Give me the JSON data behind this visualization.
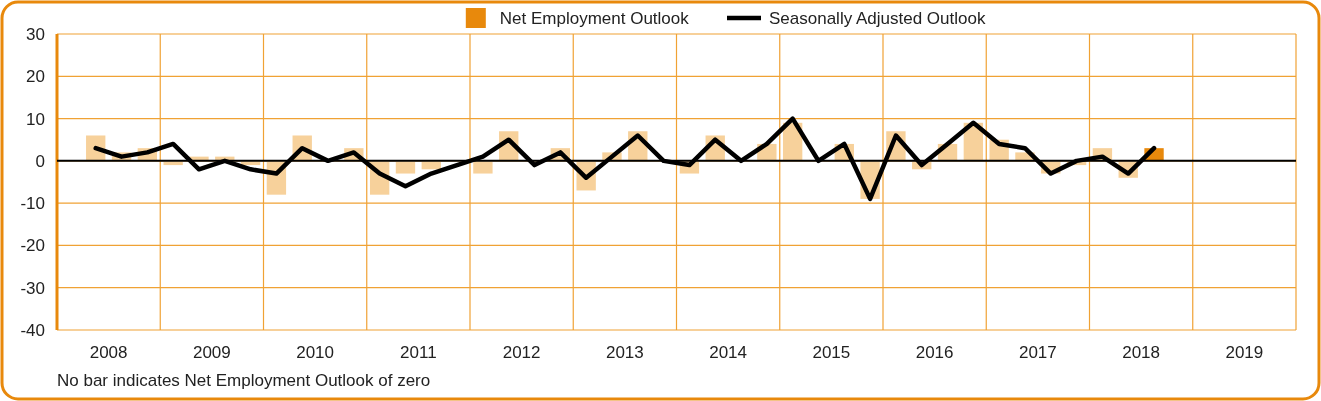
{
  "chart_data": {
    "type": "bar",
    "xlim": [
      2008,
      2020
    ],
    "xticks": [
      {
        "value": 2008,
        "label": null
      },
      {
        "value": 2008.5,
        "label": "2008"
      },
      {
        "value": 2009,
        "label": null
      },
      {
        "value": 2009.5,
        "label": "2009"
      },
      {
        "value": 2010,
        "label": null
      },
      {
        "value": 2010.5,
        "label": "2010"
      },
      {
        "value": 2011,
        "label": null
      },
      {
        "value": 2011.5,
        "label": "2011"
      },
      {
        "value": 2012,
        "label": null
      },
      {
        "value": 2012.5,
        "label": "2012"
      },
      {
        "value": 2013,
        "label": null
      },
      {
        "value": 2013.5,
        "label": "2013"
      },
      {
        "value": 2014,
        "label": null
      },
      {
        "value": 2014.5,
        "label": "2014"
      },
      {
        "value": 2015,
        "label": null
      },
      {
        "value": 2015.5,
        "label": "2015"
      },
      {
        "value": 2016,
        "label": null
      },
      {
        "value": 2016.5,
        "label": "2016"
      },
      {
        "value": 2017,
        "label": null
      },
      {
        "value": 2017.5,
        "label": "2017"
      },
      {
        "value": 2018,
        "label": null
      },
      {
        "value": 2018.5,
        "label": "2018"
      },
      {
        "value": 2019,
        "label": null
      },
      {
        "value": 2019.5,
        "label": "2019"
      },
      {
        "value": 2020,
        "label": null
      }
    ],
    "ylim": [
      -40,
      30
    ],
    "yticks": [
      -40,
      -30,
      -20,
      -10,
      0,
      10,
      20,
      30
    ],
    "grid": true,
    "legend": "top",
    "ref_lines": [
      {
        "axis": "y",
        "value": 0,
        "color": "#000000"
      }
    ],
    "annotations": [
      "No bar indicates Net Employment Outlook of zero"
    ],
    "series": [
      {
        "name": "Net Employment Outlook",
        "color": "#e8890c",
        "x": [
          2008.375,
          2008.625,
          2008.875,
          2009.125,
          2009.375,
          2009.625,
          2009.875,
          2010.125,
          2010.375,
          2010.625,
          2010.875,
          2011.125,
          2011.375,
          2011.625,
          2011.875,
          2012.125,
          2012.375,
          2012.625,
          2012.875,
          2013.125,
          2013.375,
          2013.625,
          2013.875,
          2014.125,
          2014.375,
          2014.625,
          2014.875,
          2015.125,
          2015.375,
          2015.625,
          2015.875,
          2016.125,
          2016.375,
          2016.625,
          2016.875,
          2017.125,
          2017.375,
          2017.625,
          2017.875,
          2018.125,
          2018.375,
          2018.625
        ],
        "values": [
          6,
          2,
          3,
          -1,
          1,
          1,
          -1,
          -8,
          6,
          0,
          3,
          -8,
          -3,
          -2,
          0,
          -3,
          7,
          0,
          3,
          -7,
          2,
          7,
          0,
          -3,
          6,
          0,
          4,
          9,
          0,
          4,
          -9,
          7,
          -2,
          4,
          9,
          5,
          2,
          -3,
          -1,
          3,
          -4,
          3
        ],
        "colors": [
          "#f7d19b",
          "#f7d19b",
          "#f7d19b",
          "#f7d19b",
          "#f7d19b",
          "#f7d19b",
          "#f7d19b",
          "#f7d19b",
          "#f7d19b",
          "#f7d19b",
          "#f7d19b",
          "#f7d19b",
          "#f7d19b",
          "#f7d19b",
          "#f7d19b",
          "#f7d19b",
          "#f7d19b",
          "#f7d19b",
          "#f7d19b",
          "#f7d19b",
          "#f7d19b",
          "#f7d19b",
          "#f7d19b",
          "#f7d19b",
          "#f7d19b",
          "#f7d19b",
          "#f7d19b",
          "#f7d19b",
          "#f7d19b",
          "#f7d19b",
          "#f7d19b",
          "#f7d19b",
          "#f7d19b",
          "#f7d19b",
          "#f7d19b",
          "#f7d19b",
          "#f7d19b",
          "#f7d19b",
          "#f7d19b",
          "#f7d19b",
          "#f7d19b",
          "#e8890c"
        ]
      },
      {
        "name": "Seasonally Adjusted Outlook",
        "type": "line",
        "color": "#000000",
        "x": [
          2008.375,
          2008.625,
          2008.875,
          2009.125,
          2009.375,
          2009.625,
          2009.875,
          2010.125,
          2010.375,
          2010.625,
          2010.875,
          2011.125,
          2011.375,
          2011.625,
          2011.875,
          2012.125,
          2012.375,
          2012.625,
          2012.875,
          2013.125,
          2013.375,
          2013.625,
          2013.875,
          2014.125,
          2014.375,
          2014.625,
          2014.875,
          2015.125,
          2015.375,
          2015.625,
          2015.875,
          2016.125,
          2016.375,
          2016.625,
          2016.875,
          2017.125,
          2017.375,
          2017.625,
          2017.875,
          2018.125,
          2018.375,
          2018.625
        ],
        "values": [
          3,
          1,
          2,
          4,
          -2,
          0,
          -2,
          -3,
          3,
          0,
          2,
          -3,
          -6,
          -3,
          -1,
          1,
          5,
          -1,
          2,
          -4,
          1,
          6,
          0,
          -1,
          5,
          0,
          4,
          10,
          0,
          4,
          -9,
          6,
          -1,
          4,
          9,
          4,
          3,
          -3,
          0,
          1,
          -3,
          3
        ]
      }
    ]
  }
}
